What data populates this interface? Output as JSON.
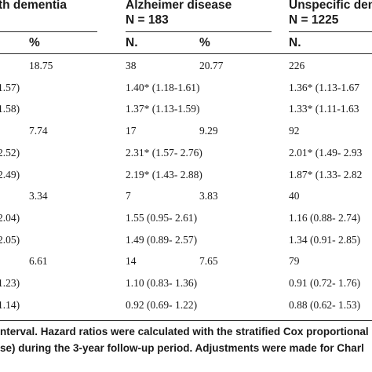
{
  "table": {
    "groups": [
      {
        "title": "th dementia",
        "n": ""
      },
      {
        "title": "Alzheimer disease",
        "n": "N = 183"
      },
      {
        "title": "Unspecific den",
        "n": "N = 1225"
      }
    ],
    "subheaders": [
      "%",
      "N.",
      "%",
      "N."
    ],
    "rows": [
      {
        "c1": "",
        "c2": "18.75",
        "c3": "38",
        "c4": "20.77",
        "c5": "226"
      },
      {
        "c1": "1.57)",
        "c2": "",
        "c3": "1.40* (1.18-1.61)",
        "c4": "",
        "c5": "1.36* (1.13-1.67"
      },
      {
        "c1": "1.58)",
        "c2": "",
        "c3": "1.37* (1.13-1.59)",
        "c4": "",
        "c5": "1.33* (1.11-1.63"
      },
      {
        "c1": "",
        "c2": "7.74",
        "c3": "17",
        "c4": "9.29",
        "c5": "92"
      },
      {
        "c1": "2.52)",
        "c2": "",
        "c3": "2.31* (1.57- 2.76)",
        "c4": "",
        "c5": "2.01* (1.49- 2.93"
      },
      {
        "c1": "2.49)",
        "c2": "",
        "c3": "2.19* (1.43- 2.88)",
        "c4": "",
        "c5": "1.87* (1.33- 2.82"
      },
      {
        "c1": "",
        "c2": "3.34",
        "c3": "7",
        "c4": "3.83",
        "c5": "40"
      },
      {
        "c1": "2.04)",
        "c2": "",
        "c3": "1.55 (0.95- 2.61)",
        "c4": "",
        "c5": "1.16 (0.88- 2.74)"
      },
      {
        "c1": "2.05)",
        "c2": "",
        "c3": "1.49 (0.89- 2.57)",
        "c4": "",
        "c5": "1.34 (0.91- 2.85)"
      },
      {
        "c1": "",
        "c2": "6.61",
        "c3": "14",
        "c4": "7.65",
        "c5": "79"
      },
      {
        "c1": "1.23)",
        "c2": "",
        "c3": "1.10 (0.83- 1.36)",
        "c4": "",
        "c5": "0.91 (0.72- 1.76)"
      },
      {
        "c1": "1.14)",
        "c2": "",
        "c3": "0.92 (0.69- 1.22)",
        "c4": "",
        "c5": "0.88 (0.62- 1.53)"
      }
    ]
  },
  "footnote": {
    "line1": "nterval. Hazard ratios were calculated with the stratified Cox proportional",
    "line2": "se) during the 3-year follow-up period. Adjustments were made for Charl"
  }
}
